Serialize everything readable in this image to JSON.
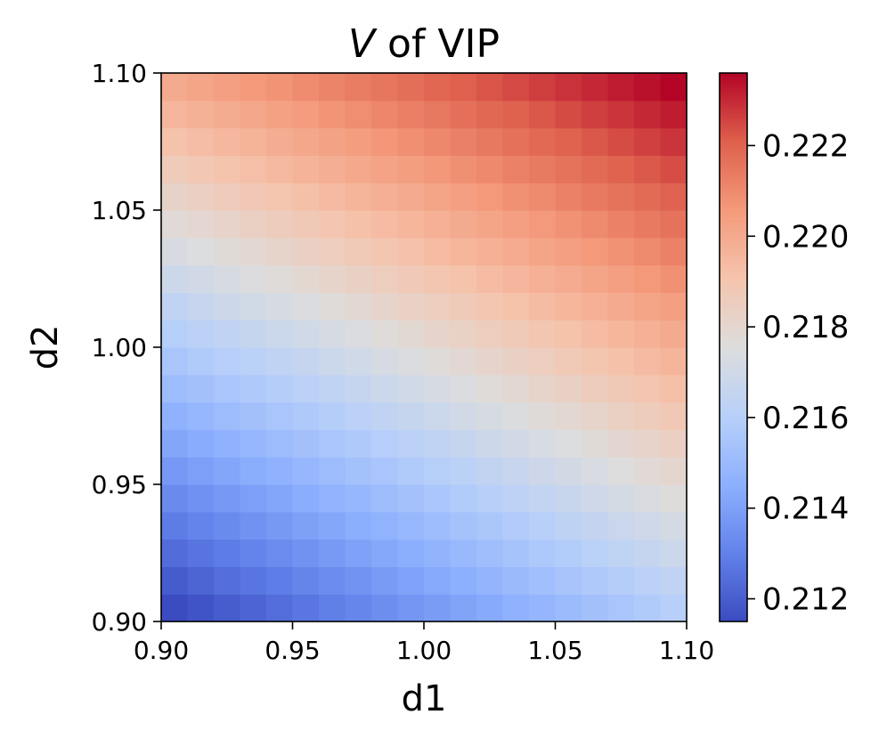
{
  "chart_data": {
    "type": "heatmap",
    "title": {
      "variable": "V",
      "rest": " of VIP"
    },
    "xlabel": "d1",
    "ylabel": "d2",
    "xlim": [
      0.9,
      1.1
    ],
    "ylim": [
      0.9,
      1.1
    ],
    "x_ticks": [
      "0.90",
      "0.95",
      "1.00",
      "1.05",
      "1.10"
    ],
    "y_ticks": [
      "0.90",
      "0.95",
      "1.00",
      "1.05",
      "1.10"
    ],
    "grid_size": [
      20,
      20
    ],
    "colormap": "coolwarm",
    "value_range": [
      0.2115,
      0.2236
    ],
    "corner_values": {
      "d1_0.90_d2_0.90": 0.2115,
      "d1_1.10_d2_1.10": 0.2236,
      "d1_0.90_d2_1.10": 0.22,
      "d1_1.10_d2_0.90": 0.216
    },
    "colorbar": {
      "ticks": [
        "0.212",
        "0.214",
        "0.216",
        "0.218",
        "0.220",
        "0.222"
      ],
      "tick_values": [
        0.212,
        0.214,
        0.216,
        0.218,
        0.22,
        0.222
      ],
      "min": 0.2115,
      "max": 0.2236
    },
    "grid": false
  }
}
